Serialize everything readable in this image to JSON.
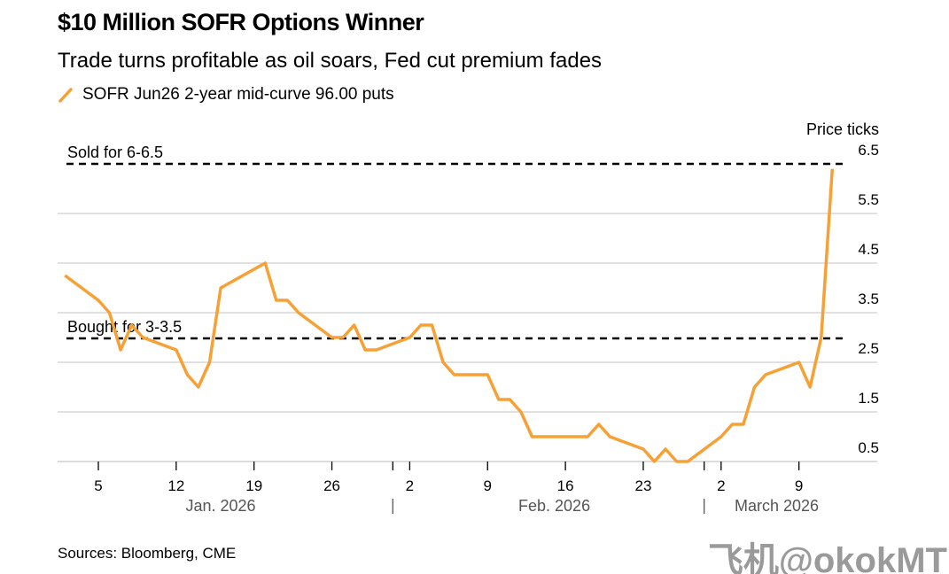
{
  "chart_data": {
    "type": "line",
    "title": "$10 Million SOFR Options Winner",
    "subtitle": "Trade turns profitable as oil soars, Fed cut premium fades",
    "ylabel": "Price ticks",
    "ylim": [
      0.5,
      6.5
    ],
    "yticks": [
      "6.5",
      "5.5",
      "4.5",
      "3.5",
      "2.5",
      "1.5",
      "0.5"
    ],
    "ytick_values": [
      6.5,
      5.5,
      4.5,
      3.5,
      2.5,
      1.5,
      0.5
    ],
    "grid": true,
    "legend_placement": "top-left",
    "xticks": [
      {
        "date": "2026-01-05",
        "label": "5"
      },
      {
        "date": "2026-01-12",
        "label": "12"
      },
      {
        "date": "2026-01-19",
        "label": "19"
      },
      {
        "date": "2026-01-26",
        "label": "26"
      },
      {
        "date": "2026-02-02",
        "label": "2"
      },
      {
        "date": "2026-02-09",
        "label": "9"
      },
      {
        "date": "2026-02-16",
        "label": "16"
      },
      {
        "date": "2026-02-23",
        "label": "23"
      },
      {
        "date": "2026-03-02",
        "label": "2"
      },
      {
        "date": "2026-03-09",
        "label": "9"
      }
    ],
    "months": [
      {
        "label": "Jan. 2026",
        "center": "2026-01-16"
      },
      {
        "label": "Feb. 2026",
        "center": "2026-02-15"
      },
      {
        "label": "March 2026",
        "center": "2026-03-07"
      }
    ],
    "month_separators": [
      "2026-01-31",
      "2026-02-28"
    ],
    "annotations": [
      {
        "text": "Sold for 6-6.5",
        "y": 6.5
      },
      {
        "text": "Bought for 3-3.5",
        "y": 3.0
      }
    ],
    "series": [
      {
        "name": "SOFR Jun26 2-year mid-curve 96.00 puts",
        "color": "#f7a035",
        "x": [
          "2026-01-02",
          "2026-01-05",
          "2026-01-06",
          "2026-01-07",
          "2026-01-08",
          "2026-01-09",
          "2026-01-12",
          "2026-01-13",
          "2026-01-14",
          "2026-01-15",
          "2026-01-16",
          "2026-01-20",
          "2026-01-21",
          "2026-01-22",
          "2026-01-23",
          "2026-01-26",
          "2026-01-27",
          "2026-01-28",
          "2026-01-29",
          "2026-01-30",
          "2026-02-02",
          "2026-02-03",
          "2026-02-04",
          "2026-02-05",
          "2026-02-06",
          "2026-02-09",
          "2026-02-10",
          "2026-02-11",
          "2026-02-12",
          "2026-02-13",
          "2026-02-17",
          "2026-02-18",
          "2026-02-19",
          "2026-02-20",
          "2026-02-23",
          "2026-02-24",
          "2026-02-25",
          "2026-02-26",
          "2026-02-27",
          "2026-03-02",
          "2026-03-03",
          "2026-03-04",
          "2026-03-05",
          "2026-03-06",
          "2026-03-09",
          "2026-03-10",
          "2026-03-11",
          "2026-03-12"
        ],
        "values": [
          4.25,
          3.75,
          3.5,
          2.75,
          3.25,
          3.0,
          2.75,
          2.25,
          2.0,
          2.5,
          4.0,
          4.5,
          3.75,
          3.75,
          3.5,
          3.0,
          3.0,
          3.25,
          2.75,
          2.75,
          3.0,
          3.25,
          3.25,
          2.5,
          2.25,
          2.25,
          1.75,
          1.75,
          1.5,
          1.0,
          1.0,
          1.0,
          1.25,
          1.0,
          0.75,
          0.5,
          0.75,
          0.5,
          0.5,
          1.0,
          1.25,
          1.25,
          2.0,
          2.25,
          2.5,
          2.0,
          3.0,
          6.4
        ]
      }
    ]
  },
  "footer": {
    "source": "Sources: Bloomberg, CME",
    "watermark": "飞机@okokMT"
  }
}
